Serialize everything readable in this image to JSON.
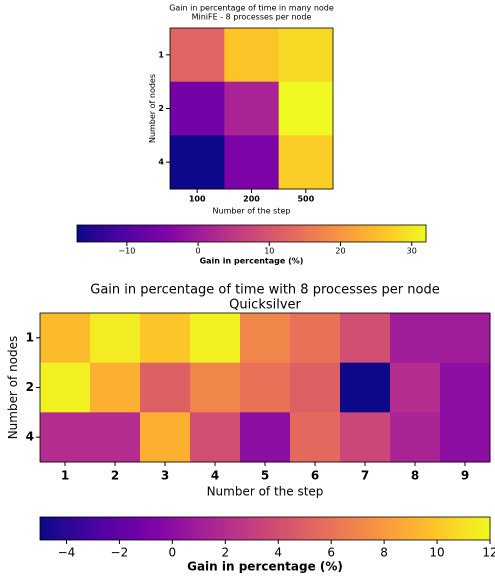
{
  "chart_data": [
    {
      "type": "heatmap",
      "title": "Gain in percentage of time in many node",
      "subtitle": "MiniFE - 8 processes per node",
      "x_label": "Number of the step",
      "y_label": "Number of nodes",
      "categories": [
        "100",
        "200",
        "500"
      ],
      "y_categories": [
        "1",
        "2",
        "4"
      ],
      "values": [
        [
          12.5,
          26,
          28.5
        ],
        [
          -6,
          1.5,
          32
        ],
        [
          -17,
          -5,
          27
        ]
      ],
      "colormap": "plasma",
      "clim": [
        -17,
        32
      ],
      "cticks": [
        {
          "value": -10,
          "label": "−10"
        },
        0,
        10,
        20,
        30
      ],
      "colorbar_label": "Gain in percentage (%)"
    },
    {
      "type": "heatmap",
      "title": "Gain in percentage of time with 8 processes per node",
      "subtitle": "Quicksilver",
      "x_label": "Number of the step",
      "y_label": "Number of nodes",
      "categories": [
        "1",
        "2",
        "3",
        "4",
        "5",
        "6",
        "7",
        "8",
        "9"
      ],
      "y_categories": [
        "1",
        "2",
        "4"
      ],
      "values": [
        [
          9.5,
          11.5,
          10,
          11.7,
          7,
          6,
          4,
          1,
          1
        ],
        [
          11.7,
          9,
          5,
          7,
          6,
          5,
          -5,
          2,
          0
        ],
        [
          2,
          2,
          9,
          4,
          0,
          5.5,
          3.5,
          1.5,
          0
        ]
      ],
      "colormap": "plasma",
      "clim": [
        -5,
        12
      ],
      "cticks": [
        {
          "value": -4,
          "label": "−4"
        },
        {
          "value": -2,
          "label": "−2"
        },
        0,
        2,
        4,
        6,
        8,
        10,
        12
      ],
      "colorbar_label": "Gain in percentage (%)"
    }
  ]
}
